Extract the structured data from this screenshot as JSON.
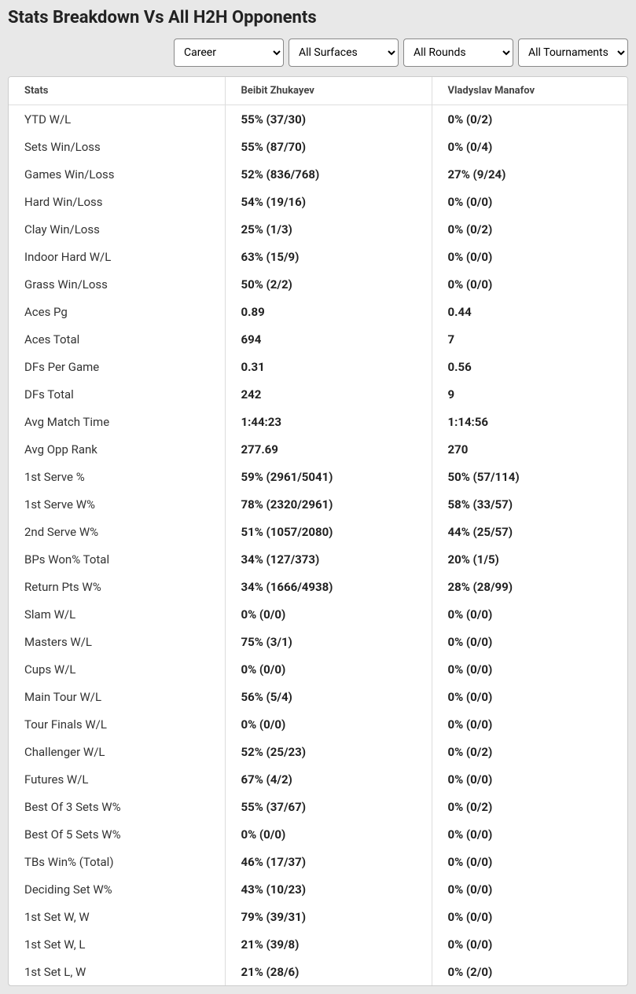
{
  "title": "Stats Breakdown Vs All H2H Opponents",
  "filters": {
    "period": "Career",
    "surface": "All Surfaces",
    "round": "All Rounds",
    "tournament": "All Tournaments"
  },
  "columns": {
    "stat": "Stats",
    "p1": "Beibit Zhukayev",
    "p2": "Vladyslav Manafov"
  },
  "rows": [
    {
      "stat": "YTD W/L",
      "p1": "55% (37/30)",
      "p2": "0% (0/2)"
    },
    {
      "stat": "Sets Win/Loss",
      "p1": "55% (87/70)",
      "p2": "0% (0/4)"
    },
    {
      "stat": "Games Win/Loss",
      "p1": "52% (836/768)",
      "p2": "27% (9/24)"
    },
    {
      "stat": "Hard Win/Loss",
      "p1": "54% (19/16)",
      "p2": "0% (0/0)"
    },
    {
      "stat": "Clay Win/Loss",
      "p1": "25% (1/3)",
      "p2": "0% (0/2)"
    },
    {
      "stat": "Indoor Hard W/L",
      "p1": "63% (15/9)",
      "p2": "0% (0/0)"
    },
    {
      "stat": "Grass Win/Loss",
      "p1": "50% (2/2)",
      "p2": "0% (0/0)"
    },
    {
      "stat": "Aces Pg",
      "p1": "0.89",
      "p2": "0.44"
    },
    {
      "stat": "Aces Total",
      "p1": "694",
      "p2": "7"
    },
    {
      "stat": "DFs Per Game",
      "p1": "0.31",
      "p2": "0.56"
    },
    {
      "stat": "DFs Total",
      "p1": "242",
      "p2": "9"
    },
    {
      "stat": "Avg Match Time",
      "p1": "1:44:23",
      "p2": "1:14:56"
    },
    {
      "stat": "Avg Opp Rank",
      "p1": "277.69",
      "p2": "270"
    },
    {
      "stat": "1st Serve %",
      "p1": "59% (2961/5041)",
      "p2": "50% (57/114)"
    },
    {
      "stat": "1st Serve W%",
      "p1": "78% (2320/2961)",
      "p2": "58% (33/57)"
    },
    {
      "stat": "2nd Serve W%",
      "p1": "51% (1057/2080)",
      "p2": "44% (25/57)"
    },
    {
      "stat": "BPs Won% Total",
      "p1": "34% (127/373)",
      "p2": "20% (1/5)"
    },
    {
      "stat": "Return Pts W%",
      "p1": "34% (1666/4938)",
      "p2": "28% (28/99)"
    },
    {
      "stat": "Slam W/L",
      "p1": "0% (0/0)",
      "p2": "0% (0/0)"
    },
    {
      "stat": "Masters W/L",
      "p1": "75% (3/1)",
      "p2": "0% (0/0)"
    },
    {
      "stat": "Cups W/L",
      "p1": "0% (0/0)",
      "p2": "0% (0/0)"
    },
    {
      "stat": "Main Tour W/L",
      "p1": "56% (5/4)",
      "p2": "0% (0/0)"
    },
    {
      "stat": "Tour Finals W/L",
      "p1": "0% (0/0)",
      "p2": "0% (0/0)"
    },
    {
      "stat": "Challenger W/L",
      "p1": "52% (25/23)",
      "p2": "0% (0/2)"
    },
    {
      "stat": "Futures W/L",
      "p1": "67% (4/2)",
      "p2": "0% (0/0)"
    },
    {
      "stat": "Best Of 3 Sets W%",
      "p1": "55% (37/67)",
      "p2": "0% (0/2)"
    },
    {
      "stat": "Best Of 5 Sets W%",
      "p1": "0% (0/0)",
      "p2": "0% (0/0)"
    },
    {
      "stat": "TBs Win% (Total)",
      "p1": "46% (17/37)",
      "p2": "0% (0/0)"
    },
    {
      "stat": "Deciding Set W%",
      "p1": "43% (10/23)",
      "p2": "0% (0/0)"
    },
    {
      "stat": "1st Set W, W",
      "p1": "79% (39/31)",
      "p2": "0% (0/0)"
    },
    {
      "stat": "1st Set W, L",
      "p1": "21% (39/8)",
      "p2": "0% (0/0)"
    },
    {
      "stat": "1st Set L, W",
      "p1": "21% (28/6)",
      "p2": "0% (2/0)"
    }
  ]
}
